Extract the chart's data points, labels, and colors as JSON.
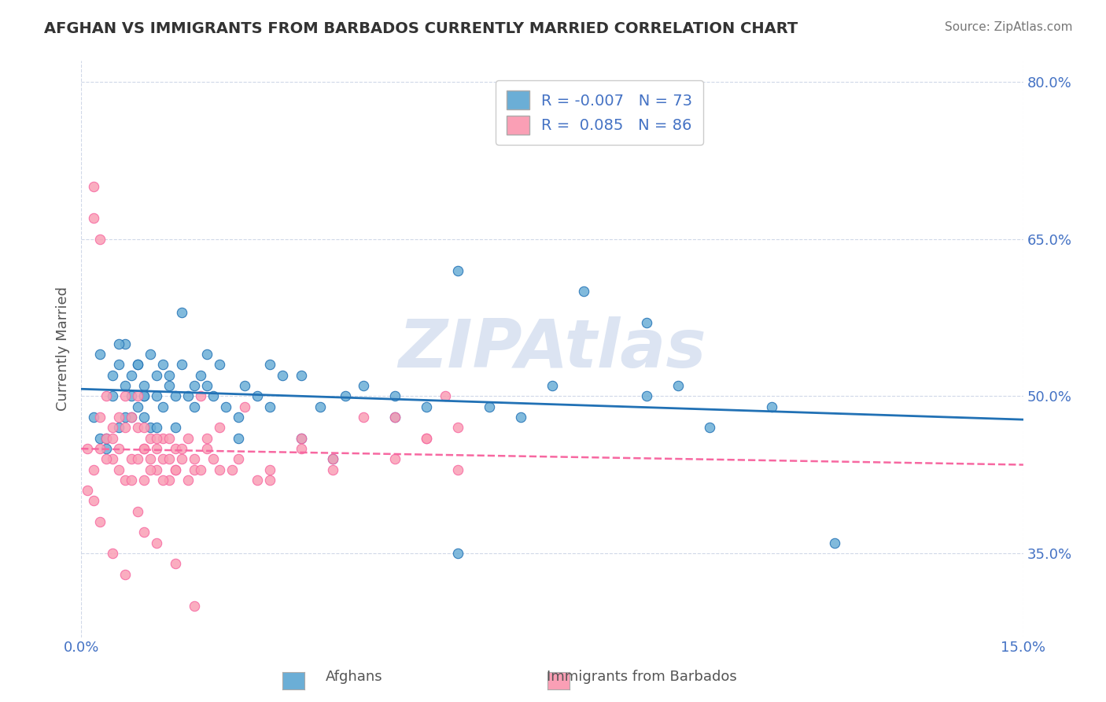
{
  "title": "AFGHAN VS IMMIGRANTS FROM BARBADOS CURRENTLY MARRIED CORRELATION CHART",
  "source_text": "Source: ZipAtlas.com",
  "xlabel": "",
  "ylabel": "Currently Married",
  "xlim": [
    0.0,
    15.0
  ],
  "ylim": [
    27.0,
    82.0
  ],
  "yticks": [
    35.0,
    50.0,
    65.0,
    80.0
  ],
  "ytick_labels": [
    "35.0%",
    "50.0%",
    "65.0%",
    "80.0%"
  ],
  "xticks": [
    0.0,
    15.0
  ],
  "xtick_labels": [
    "0.0%",
    "15.0%"
  ],
  "legend_r1": "R = -0.007",
  "legend_n1": "N = 73",
  "legend_r2": "R =  0.085",
  "legend_n2": "N = 86",
  "color_blue": "#6baed6",
  "color_pink": "#fa9fb5",
  "color_blue_dark": "#2171b5",
  "color_pink_dark": "#c51b8a",
  "watermark": "ZIPAtlas",
  "watermark_color": "#c0cfe8",
  "blue_scatter_x": [
    0.2,
    0.3,
    0.3,
    0.4,
    0.5,
    0.5,
    0.6,
    0.6,
    0.7,
    0.7,
    0.8,
    0.8,
    0.8,
    0.9,
    0.9,
    1.0,
    1.0,
    1.0,
    1.1,
    1.1,
    1.2,
    1.2,
    1.3,
    1.3,
    1.4,
    1.5,
    1.5,
    1.6,
    1.7,
    1.8,
    1.9,
    2.0,
    2.1,
    2.2,
    2.3,
    2.5,
    2.6,
    2.8,
    3.0,
    3.2,
    3.5,
    3.8,
    4.0,
    4.5,
    5.0,
    5.5,
    6.0,
    6.5,
    7.0,
    8.0,
    9.0,
    9.5,
    10.0,
    11.0,
    12.0,
    0.4,
    0.6,
    0.7,
    0.9,
    1.0,
    1.2,
    1.4,
    1.6,
    1.8,
    2.0,
    2.5,
    3.0,
    3.5,
    4.2,
    5.0,
    6.0,
    7.5,
    9.0
  ],
  "blue_scatter_y": [
    48,
    46,
    54,
    45,
    50,
    52,
    53,
    47,
    55,
    51,
    48,
    50,
    52,
    49,
    53,
    50,
    51,
    48,
    47,
    54,
    50,
    52,
    49,
    53,
    51,
    50,
    47,
    53,
    50,
    49,
    52,
    51,
    50,
    53,
    49,
    48,
    51,
    50,
    53,
    52,
    46,
    49,
    44,
    51,
    50,
    49,
    62,
    49,
    48,
    60,
    50,
    51,
    47,
    49,
    36,
    46,
    55,
    48,
    53,
    50,
    47,
    52,
    58,
    51,
    54,
    46,
    49,
    52,
    50,
    48,
    35,
    51,
    57
  ],
  "pink_scatter_x": [
    0.1,
    0.2,
    0.2,
    0.3,
    0.3,
    0.4,
    0.4,
    0.5,
    0.5,
    0.6,
    0.6,
    0.7,
    0.7,
    0.8,
    0.8,
    0.9,
    0.9,
    1.0,
    1.0,
    1.0,
    1.1,
    1.1,
    1.2,
    1.2,
    1.3,
    1.3,
    1.4,
    1.4,
    1.5,
    1.5,
    1.6,
    1.7,
    1.8,
    1.9,
    2.0,
    2.1,
    2.2,
    2.4,
    2.6,
    2.8,
    3.0,
    3.5,
    4.0,
    4.5,
    5.0,
    5.5,
    5.8,
    6.0,
    0.2,
    0.3,
    0.4,
    0.5,
    0.6,
    0.7,
    0.8,
    0.9,
    1.0,
    1.1,
    1.2,
    1.3,
    1.4,
    1.5,
    1.6,
    1.7,
    1.8,
    1.9,
    2.0,
    2.2,
    2.5,
    3.0,
    3.5,
    4.0,
    5.0,
    5.5,
    6.0,
    0.1,
    0.2,
    0.3,
    0.5,
    0.7,
    0.9,
    1.0,
    1.2,
    1.5,
    1.8
  ],
  "pink_scatter_y": [
    45,
    67,
    70,
    48,
    65,
    46,
    50,
    44,
    47,
    45,
    48,
    50,
    42,
    44,
    48,
    47,
    50,
    45,
    47,
    42,
    44,
    46,
    43,
    45,
    46,
    44,
    42,
    46,
    43,
    45,
    44,
    46,
    43,
    50,
    45,
    44,
    47,
    43,
    49,
    42,
    43,
    46,
    44,
    48,
    48,
    46,
    50,
    47,
    43,
    45,
    44,
    46,
    43,
    47,
    42,
    44,
    45,
    43,
    46,
    42,
    44,
    43,
    45,
    42,
    44,
    43,
    46,
    43,
    44,
    42,
    45,
    43,
    44,
    46,
    43,
    41,
    40,
    38,
    35,
    33,
    39,
    37,
    36,
    34,
    30
  ]
}
